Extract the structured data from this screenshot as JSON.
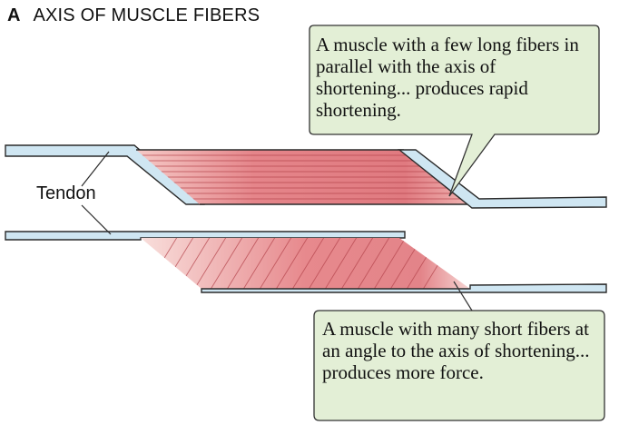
{
  "panel": {
    "letter": "A",
    "title": "AXIS OF MUSCLE FIBERS"
  },
  "labels": {
    "tendon": "Tendon"
  },
  "callouts": {
    "top": "A muscle with a few long fibers in parallel with the axis of shortening... produces rapid shortening.",
    "bottom": "A muscle with many short fibers at an angle to the axis of shortening... produces more force."
  },
  "colors": {
    "tendon_fill": "#cfe6f2",
    "tendon_stroke": "#2a2a2a",
    "muscle_dark": "#e07a80",
    "muscle_light": "#f8d9d6",
    "fiber_line": "#b5454c",
    "callout_fill": "#e3efd6",
    "callout_stroke": "#333333"
  }
}
